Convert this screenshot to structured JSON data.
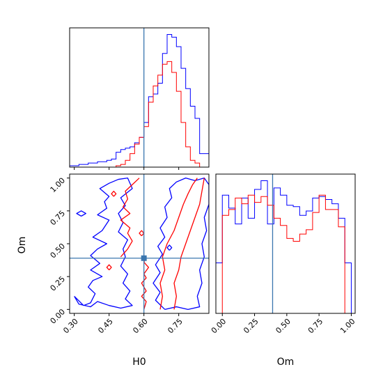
{
  "chart_data": {
    "type": "corner",
    "colors": {
      "series_a": "#0000ff",
      "series_b": "#ff0000",
      "truth": "#3a76af",
      "axis": "#000000"
    },
    "parameters": [
      "H0",
      "Om"
    ],
    "truth": {
      "H0": 0.6,
      "Om": 0.39
    },
    "panels": [
      {
        "id": "hist-H0",
        "type": "histogram-step",
        "xlim": [
          0.28,
          0.88
        ],
        "xticks": [
          0.3,
          0.45,
          0.6,
          0.75
        ],
        "xtick_labels_shown": false,
        "yticks_shown": false,
        "bin_edges": [
          0.28,
          0.3,
          0.32,
          0.34,
          0.36,
          0.38,
          0.4,
          0.42,
          0.44,
          0.46,
          0.48,
          0.5,
          0.52,
          0.54,
          0.56,
          0.58,
          0.6,
          0.62,
          0.64,
          0.66,
          0.68,
          0.7,
          0.72,
          0.74,
          0.76,
          0.78,
          0.8,
          0.82,
          0.84,
          0.86,
          0.88
        ],
        "series": [
          {
            "color_key": "series_a",
            "values": [
              1,
              1,
              2,
              2,
              3,
              3,
              4,
              4,
              5,
              6,
              11,
              13,
              14,
              15,
              18,
              22,
              33,
              52,
              54,
              62,
              84,
              98,
              96,
              89,
              73,
              58,
              45,
              36,
              10,
              10
            ]
          },
          {
            "color_key": "series_b",
            "values": [
              0,
              0,
              0,
              0,
              0,
              0,
              0,
              0,
              0,
              0,
              1,
              2,
              5,
              10,
              17,
              22,
              30,
              48,
              60,
              68,
              76,
              78,
              70,
              56,
              33,
              15,
              5,
              3,
              0,
              0
            ]
          }
        ]
      },
      {
        "id": "contour-H0-Om",
        "type": "contour",
        "xlabel": "H0",
        "ylabel": "Om",
        "xlim": [
          0.28,
          0.88
        ],
        "ylim": [
          -0.03,
          1.03
        ],
        "xticks": [
          0.3,
          0.45,
          0.6,
          0.75
        ],
        "xtick_labels": [
          "0.30",
          "0.45",
          "0.60",
          "0.75"
        ],
        "yticks": [
          0.0,
          0.25,
          0.5,
          0.75,
          1.0
        ],
        "ytick_labels": [
          "0.00",
          "0.25",
          "0.50",
          "0.75",
          "1.00"
        ],
        "contours": [
          {
            "color_key": "series_a",
            "points": [
              [
                0.3,
                0.1
              ],
              [
                0.34,
                0.03
              ],
              [
                0.37,
                0.05
              ],
              [
                0.39,
                0.12
              ],
              [
                0.36,
                0.17
              ],
              [
                0.38,
                0.22
              ],
              [
                0.42,
                0.25
              ],
              [
                0.37,
                0.3
              ],
              [
                0.41,
                0.35
              ],
              [
                0.37,
                0.41
              ],
              [
                0.4,
                0.46
              ],
              [
                0.44,
                0.5
              ],
              [
                0.38,
                0.55
              ],
              [
                0.42,
                0.6
              ],
              [
                0.45,
                0.68
              ],
              [
                0.4,
                0.72
              ],
              [
                0.44,
                0.77
              ],
              [
                0.43,
                0.82
              ],
              [
                0.45,
                0.86
              ],
              [
                0.41,
                0.92
              ],
              [
                0.45,
                0.96
              ],
              [
                0.49,
                0.99
              ],
              [
                0.53,
                1.0
              ],
              [
                0.55,
                0.92
              ],
              [
                0.5,
                0.85
              ],
              [
                0.52,
                0.79
              ],
              [
                0.49,
                0.73
              ],
              [
                0.51,
                0.66
              ],
              [
                0.49,
                0.59
              ],
              [
                0.53,
                0.53
              ],
              [
                0.51,
                0.46
              ],
              [
                0.52,
                0.4
              ],
              [
                0.5,
                0.33
              ],
              [
                0.53,
                0.27
              ],
              [
                0.51,
                0.2
              ],
              [
                0.54,
                0.14
              ],
              [
                0.52,
                0.08
              ],
              [
                0.55,
                0.03
              ],
              [
                0.5,
                0.01
              ],
              [
                0.45,
                0.03
              ],
              [
                0.4,
                0.06
              ],
              [
                0.37,
                0.02
              ],
              [
                0.32,
                0.04
              ],
              [
                0.3,
                0.1
              ]
            ]
          },
          {
            "color_key": "series_a",
            "points": [
              [
                0.69,
                0.0
              ],
              [
                0.65,
                0.07
              ],
              [
                0.67,
                0.13
              ],
              [
                0.64,
                0.2
              ],
              [
                0.67,
                0.28
              ],
              [
                0.65,
                0.34
              ],
              [
                0.68,
                0.42
              ],
              [
                0.66,
                0.48
              ],
              [
                0.69,
                0.55
              ],
              [
                0.67,
                0.62
              ],
              [
                0.7,
                0.7
              ],
              [
                0.69,
                0.78
              ],
              [
                0.72,
                0.85
              ],
              [
                0.71,
                0.92
              ],
              [
                0.74,
                0.97
              ],
              [
                0.78,
                1.0
              ],
              [
                0.82,
                0.98
              ],
              [
                0.86,
                1.0
              ],
              [
                0.88,
                0.95
              ],
              [
                0.88,
                0.8
              ],
              [
                0.86,
                0.7
              ],
              [
                0.87,
                0.6
              ],
              [
                0.85,
                0.5
              ],
              [
                0.86,
                0.4
              ],
              [
                0.84,
                0.3
              ],
              [
                0.85,
                0.2
              ],
              [
                0.83,
                0.1
              ],
              [
                0.84,
                0.02
              ],
              [
                0.79,
                0.0
              ],
              [
                0.74,
                0.02
              ],
              [
                0.69,
                0.0
              ]
            ]
          },
          {
            "color_key": "series_a",
            "points": [
              [
                0.33,
                0.71
              ],
              [
                0.35,
                0.73
              ],
              [
                0.33,
                0.75
              ],
              [
                0.31,
                0.73
              ],
              [
                0.33,
                0.71
              ]
            ]
          },
          {
            "color_key": "series_a",
            "points": [
              [
                0.71,
                0.45
              ],
              [
                0.72,
                0.47
              ],
              [
                0.71,
                0.49
              ],
              [
                0.7,
                0.47
              ],
              [
                0.71,
                0.45
              ]
            ]
          },
          {
            "color_key": "series_b",
            "points": [
              [
                0.6,
                0.0
              ],
              [
                0.61,
                0.06
              ],
              [
                0.59,
                0.1
              ],
              [
                0.61,
                0.14
              ],
              [
                0.59,
                0.2
              ],
              [
                0.61,
                0.24
              ],
              [
                0.6,
                0.27
              ],
              [
                0.62,
                0.32
              ],
              [
                0.6,
                0.36
              ],
              [
                0.61,
                0.4
              ]
            ]
          },
          {
            "color_key": "series_b",
            "points": [
              [
                0.5,
                0.4
              ],
              [
                0.53,
                0.46
              ],
              [
                0.55,
                0.52
              ],
              [
                0.53,
                0.58
              ],
              [
                0.54,
                0.62
              ],
              [
                0.5,
                0.68
              ],
              [
                0.54,
                0.73
              ],
              [
                0.51,
                0.78
              ],
              [
                0.53,
                0.84
              ],
              [
                0.52,
                0.9
              ],
              [
                0.55,
                0.95
              ],
              [
                0.58,
                1.0
              ]
            ]
          },
          {
            "color_key": "series_b",
            "points": [
              [
                0.67,
                0.0
              ],
              [
                0.68,
                0.1
              ],
              [
                0.67,
                0.2
              ],
              [
                0.69,
                0.3
              ],
              [
                0.68,
                0.4
              ],
              [
                0.7,
                0.5
              ],
              [
                0.73,
                0.6
              ],
              [
                0.75,
                0.7
              ],
              [
                0.77,
                0.8
              ],
              [
                0.79,
                0.88
              ],
              [
                0.81,
                0.95
              ],
              [
                0.83,
                1.0
              ]
            ]
          },
          {
            "color_key": "series_b",
            "points": [
              [
                0.73,
                0.0
              ],
              [
                0.74,
                0.1
              ],
              [
                0.73,
                0.2
              ],
              [
                0.75,
                0.3
              ],
              [
                0.76,
                0.4
              ],
              [
                0.78,
                0.5
              ],
              [
                0.8,
                0.6
              ],
              [
                0.82,
                0.7
              ],
              [
                0.84,
                0.8
              ],
              [
                0.85,
                0.9
              ],
              [
                0.86,
                1.0
              ]
            ]
          },
          {
            "color_key": "series_b",
            "points": [
              [
                0.47,
                0.86
              ],
              [
                0.48,
                0.88
              ],
              [
                0.47,
                0.9
              ],
              [
                0.46,
                0.88
              ],
              [
                0.47,
                0.86
              ]
            ]
          },
          {
            "color_key": "series_b",
            "points": [
              [
                0.59,
                0.56
              ],
              [
                0.6,
                0.58
              ],
              [
                0.59,
                0.6
              ],
              [
                0.58,
                0.58
              ],
              [
                0.59,
                0.56
              ]
            ]
          },
          {
            "color_key": "series_b",
            "points": [
              [
                0.45,
                0.3
              ],
              [
                0.46,
                0.32
              ],
              [
                0.45,
                0.34
              ],
              [
                0.44,
                0.32
              ],
              [
                0.45,
                0.3
              ]
            ]
          }
        ],
        "markers": [
          {
            "x": 0.6,
            "y": 0.39
          }
        ]
      },
      {
        "id": "hist-Om",
        "type": "histogram-step",
        "xlabel": "Om",
        "xlim": [
          -0.05,
          1.03
        ],
        "xticks": [
          0.0,
          0.25,
          0.5,
          0.75,
          1.0
        ],
        "xtick_labels": [
          "0.00",
          "0.25",
          "0.50",
          "0.75",
          "1.00"
        ],
        "yticks_shown": false,
        "bin_edges": [
          -0.05,
          0.0,
          0.05,
          0.1,
          0.15,
          0.2,
          0.25,
          0.3,
          0.35,
          0.4,
          0.45,
          0.5,
          0.55,
          0.6,
          0.65,
          0.7,
          0.75,
          0.8,
          0.85,
          0.9,
          0.95,
          1.0
        ],
        "series": [
          {
            "color_key": "series_a",
            "values": [
              35,
              82,
              73,
              62,
              80,
              66,
              86,
              92,
              62,
              87,
              82,
              75,
              74,
              68,
              71,
              80,
              81,
              79,
              76,
              66,
              35
            ]
          },
          {
            "color_key": "series_b",
            "values": [
              0,
              68,
              72,
              80,
              76,
              82,
              77,
              81,
              75,
              66,
              61,
              52,
              50,
              55,
              58,
              70,
              82,
              72,
              72,
              60,
              0
            ]
          }
        ]
      }
    ]
  }
}
